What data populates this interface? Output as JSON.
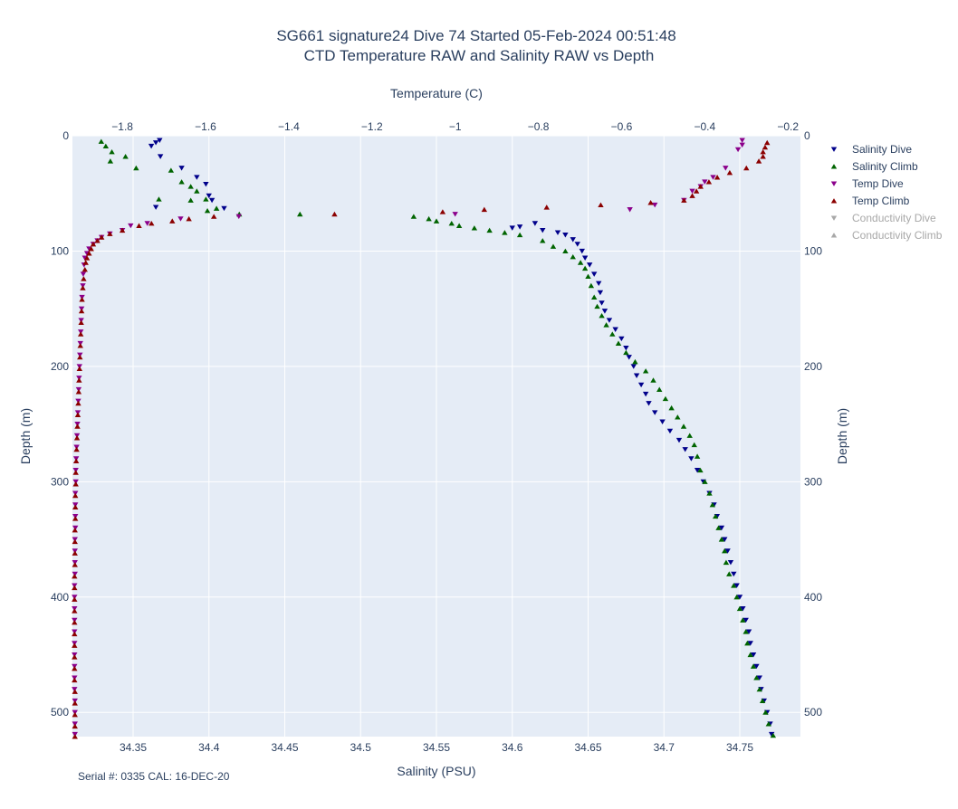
{
  "chart_data": {
    "type": "scatter",
    "title_line1": "SG661 signature24 Dive 74 Started 05-Feb-2024 00:51:48",
    "title_line2": "CTD Temperature RAW and Salinity RAW vs Depth",
    "xlabel_bottom": "Salinity (PSU)",
    "xlabel_top": "Temperature (C)",
    "ylabel_left": "Depth (m)",
    "ylabel_right": "Depth (m)",
    "footer": "Serial #: 0335  CAL: 16-DEC-20",
    "xlim_bottom": [
      34.31,
      34.79
    ],
    "xlim_top": [
      -1.92,
      -0.17
    ],
    "ylim": [
      0,
      521
    ],
    "y_reversed": true,
    "grid": true,
    "legend_placement": "top-right outside",
    "bottom_ticks": [
      "34.35",
      "34.4",
      "34.45",
      "34.5",
      "34.55",
      "34.6",
      "34.65",
      "34.7",
      "34.75"
    ],
    "bottom_tick_values": [
      34.35,
      34.4,
      34.45,
      34.5,
      34.55,
      34.6,
      34.65,
      34.7,
      34.75
    ],
    "top_ticks": [
      "−1.8",
      "−1.6",
      "−1.4",
      "−1.2",
      "−1",
      "−0.8",
      "−0.6",
      "−0.4",
      "−0.2"
    ],
    "top_tick_values": [
      -1.8,
      -1.6,
      -1.4,
      -1.2,
      -1.0,
      -0.8,
      -0.6,
      -0.4,
      -0.2
    ],
    "y_ticks": [
      "0",
      "100",
      "200",
      "300",
      "400",
      "500"
    ],
    "y_tick_values": [
      0,
      100,
      200,
      300,
      400,
      500
    ],
    "series": [
      {
        "name": "Salinity Dive",
        "color": "#00008b",
        "marker": "triangle-down",
        "axis": "salinity",
        "visible": true,
        "points": [
          [
            34.3675,
            4
          ],
          [
            34.365,
            6
          ],
          [
            34.362,
            9
          ],
          [
            34.368,
            18
          ],
          [
            34.382,
            28
          ],
          [
            34.392,
            36
          ],
          [
            34.398,
            42
          ],
          [
            34.4,
            52
          ],
          [
            34.402,
            56
          ],
          [
            34.365,
            62
          ],
          [
            34.41,
            63
          ],
          [
            34.6,
            80
          ],
          [
            34.605,
            79
          ],
          [
            34.615,
            76
          ],
          [
            34.62,
            82
          ],
          [
            34.63,
            84
          ],
          [
            34.635,
            86
          ],
          [
            34.64,
            90
          ],
          [
            34.643,
            94
          ],
          [
            34.646,
            100
          ],
          [
            34.648,
            106
          ],
          [
            34.651,
            112
          ],
          [
            34.654,
            120
          ],
          [
            34.657,
            128
          ],
          [
            34.658,
            136
          ],
          [
            34.659,
            145
          ],
          [
            34.661,
            152
          ],
          [
            34.664,
            160
          ],
          [
            34.668,
            168
          ],
          [
            34.672,
            176
          ],
          [
            34.675,
            184
          ],
          [
            34.677,
            192
          ],
          [
            34.68,
            200
          ],
          [
            34.682,
            208
          ],
          [
            34.685,
            216
          ],
          [
            34.688,
            224
          ],
          [
            34.69,
            232
          ],
          [
            34.694,
            240
          ],
          [
            34.699,
            248
          ],
          [
            34.704,
            256
          ],
          [
            34.71,
            264
          ],
          [
            34.714,
            272
          ],
          [
            34.718,
            280
          ],
          [
            34.722,
            290
          ],
          [
            34.726,
            300
          ],
          [
            34.73,
            310
          ],
          [
            34.733,
            320
          ],
          [
            34.735,
            330
          ],
          [
            34.738,
            340
          ],
          [
            34.74,
            350
          ],
          [
            34.742,
            360
          ],
          [
            34.744,
            370
          ],
          [
            34.746,
            380
          ],
          [
            34.748,
            390
          ],
          [
            34.75,
            400
          ],
          [
            34.752,
            410
          ],
          [
            34.754,
            420
          ],
          [
            34.756,
            430
          ],
          [
            34.757,
            440
          ],
          [
            34.759,
            450
          ],
          [
            34.761,
            460
          ],
          [
            34.763,
            470
          ],
          [
            34.764,
            480
          ],
          [
            34.766,
            490
          ],
          [
            34.768,
            500
          ],
          [
            34.77,
            510
          ],
          [
            34.771,
            519
          ]
        ]
      },
      {
        "name": "Salinity Climb",
        "color": "#006400",
        "marker": "triangle-up",
        "axis": "salinity",
        "visible": true,
        "points": [
          [
            34.329,
            5
          ],
          [
            34.332,
            9
          ],
          [
            34.336,
            14
          ],
          [
            34.335,
            22
          ],
          [
            34.345,
            18
          ],
          [
            34.352,
            28
          ],
          [
            34.375,
            30
          ],
          [
            34.382,
            40
          ],
          [
            34.388,
            44
          ],
          [
            34.392,
            48
          ],
          [
            34.398,
            55
          ],
          [
            34.388,
            56
          ],
          [
            34.367,
            55
          ],
          [
            34.405,
            63
          ],
          [
            34.399,
            65
          ],
          [
            34.42,
            68
          ],
          [
            34.46,
            68
          ],
          [
            34.535,
            70
          ],
          [
            34.545,
            72
          ],
          [
            34.55,
            74
          ],
          [
            34.56,
            76
          ],
          [
            34.565,
            78
          ],
          [
            34.575,
            80
          ],
          [
            34.585,
            82
          ],
          [
            34.595,
            84
          ],
          [
            34.605,
            86
          ],
          [
            34.62,
            91
          ],
          [
            34.627,
            96
          ],
          [
            34.635,
            100
          ],
          [
            34.64,
            105
          ],
          [
            34.645,
            110
          ],
          [
            34.648,
            115
          ],
          [
            34.65,
            122
          ],
          [
            34.652,
            130
          ],
          [
            34.654,
            140
          ],
          [
            34.656,
            148
          ],
          [
            34.659,
            156
          ],
          [
            34.662,
            164
          ],
          [
            34.666,
            172
          ],
          [
            34.67,
            180
          ],
          [
            34.675,
            188
          ],
          [
            34.681,
            196
          ],
          [
            34.688,
            204
          ],
          [
            34.693,
            212
          ],
          [
            34.697,
            220
          ],
          [
            34.701,
            228
          ],
          [
            34.705,
            236
          ],
          [
            34.709,
            244
          ],
          [
            34.713,
            252
          ],
          [
            34.717,
            260
          ],
          [
            34.72,
            268
          ],
          [
            34.722,
            278
          ],
          [
            34.724,
            290
          ],
          [
            34.727,
            300
          ],
          [
            34.73,
            310
          ],
          [
            34.732,
            320
          ],
          [
            34.734,
            330
          ],
          [
            34.736,
            340
          ],
          [
            34.738,
            350
          ],
          [
            34.74,
            360
          ],
          [
            34.741,
            370
          ],
          [
            34.743,
            380
          ],
          [
            34.746,
            390
          ],
          [
            34.748,
            400
          ],
          [
            34.75,
            410
          ],
          [
            34.752,
            420
          ],
          [
            34.754,
            430
          ],
          [
            34.755,
            440
          ],
          [
            34.757,
            450
          ],
          [
            34.759,
            460
          ],
          [
            34.761,
            470
          ],
          [
            34.763,
            480
          ],
          [
            34.765,
            490
          ],
          [
            34.767,
            500
          ],
          [
            34.769,
            510
          ],
          [
            34.772,
            520
          ]
        ]
      },
      {
        "name": "Temp Dive",
        "color": "#8b008b",
        "marker": "triangle-down",
        "axis": "temperature",
        "visible": true,
        "points": [
          [
            -0.31,
            4
          ],
          [
            -0.31,
            8
          ],
          [
            -0.32,
            12
          ],
          [
            -0.35,
            28
          ],
          [
            -0.38,
            36
          ],
          [
            -0.4,
            40
          ],
          [
            -0.41,
            44
          ],
          [
            -0.43,
            48
          ],
          [
            -0.45,
            56
          ],
          [
            -0.52,
            60
          ],
          [
            -0.58,
            64
          ],
          [
            -1.0,
            68
          ],
          [
            -1.52,
            70
          ],
          [
            -1.66,
            72
          ],
          [
            -1.74,
            76
          ],
          [
            -1.78,
            78
          ],
          [
            -1.8,
            82
          ],
          [
            -1.83,
            85
          ],
          [
            -1.85,
            88
          ],
          [
            -1.86,
            91
          ],
          [
            -1.87,
            94
          ],
          [
            -1.88,
            98
          ],
          [
            -1.885,
            102
          ],
          [
            -1.89,
            106
          ],
          [
            -1.892,
            112
          ],
          [
            -1.894,
            120
          ],
          [
            -1.895,
            130
          ],
          [
            -1.897,
            140
          ],
          [
            -1.898,
            150
          ],
          [
            -1.899,
            160
          ],
          [
            -1.9,
            170
          ],
          [
            -1.901,
            180
          ],
          [
            -1.902,
            190
          ],
          [
            -1.903,
            200
          ],
          [
            -1.904,
            210
          ],
          [
            -1.905,
            220
          ],
          [
            -1.906,
            230
          ],
          [
            -1.907,
            240
          ],
          [
            -1.908,
            250
          ],
          [
            -1.909,
            260
          ],
          [
            -1.91,
            270
          ],
          [
            -1.911,
            280
          ],
          [
            -1.912,
            290
          ],
          [
            -1.912,
            300
          ],
          [
            -1.913,
            310
          ],
          [
            -1.913,
            320
          ],
          [
            -1.913,
            330
          ],
          [
            -1.913,
            340
          ],
          [
            -1.914,
            350
          ],
          [
            -1.914,
            360
          ],
          [
            -1.914,
            370
          ],
          [
            -1.914,
            380
          ],
          [
            -1.915,
            390
          ],
          [
            -1.915,
            400
          ],
          [
            -1.915,
            410
          ],
          [
            -1.915,
            420
          ],
          [
            -1.915,
            430
          ],
          [
            -1.915,
            440
          ],
          [
            -1.915,
            450
          ],
          [
            -1.915,
            460
          ],
          [
            -1.915,
            470
          ],
          [
            -1.915,
            480
          ],
          [
            -1.914,
            490
          ],
          [
            -1.914,
            500
          ],
          [
            -1.914,
            510
          ],
          [
            -1.914,
            519
          ]
        ]
      },
      {
        "name": "Temp Climb",
        "color": "#8b0000",
        "marker": "triangle-up",
        "axis": "temperature",
        "visible": true,
        "points": [
          [
            -0.25,
            6
          ],
          [
            -0.255,
            10
          ],
          [
            -0.26,
            14
          ],
          [
            -0.26,
            18
          ],
          [
            -0.27,
            22
          ],
          [
            -0.3,
            28
          ],
          [
            -0.34,
            32
          ],
          [
            -0.37,
            36
          ],
          [
            -0.39,
            40
          ],
          [
            -0.41,
            44
          ],
          [
            -0.42,
            48
          ],
          [
            -0.43,
            52
          ],
          [
            -0.45,
            56
          ],
          [
            -0.53,
            58
          ],
          [
            -0.65,
            60
          ],
          [
            -0.78,
            62
          ],
          [
            -0.93,
            64
          ],
          [
            -1.03,
            66
          ],
          [
            -1.29,
            68
          ],
          [
            -1.58,
            70
          ],
          [
            -1.64,
            72
          ],
          [
            -1.68,
            74
          ],
          [
            -1.73,
            76
          ],
          [
            -1.76,
            78
          ],
          [
            -1.8,
            82
          ],
          [
            -1.83,
            85
          ],
          [
            -1.85,
            88
          ],
          [
            -1.86,
            91
          ],
          [
            -1.87,
            94
          ],
          [
            -1.875,
            98
          ],
          [
            -1.88,
            102
          ],
          [
            -1.885,
            106
          ],
          [
            -1.888,
            110
          ],
          [
            -1.89,
            116
          ],
          [
            -1.893,
            124
          ],
          [
            -1.895,
            132
          ],
          [
            -1.897,
            142
          ],
          [
            -1.898,
            152
          ],
          [
            -1.899,
            162
          ],
          [
            -1.9,
            172
          ],
          [
            -1.901,
            182
          ],
          [
            -1.902,
            192
          ],
          [
            -1.903,
            202
          ],
          [
            -1.904,
            212
          ],
          [
            -1.905,
            222
          ],
          [
            -1.906,
            232
          ],
          [
            -1.907,
            242
          ],
          [
            -1.908,
            252
          ],
          [
            -1.909,
            262
          ],
          [
            -1.91,
            272
          ],
          [
            -1.911,
            282
          ],
          [
            -1.912,
            292
          ],
          [
            -1.912,
            302
          ],
          [
            -1.913,
            312
          ],
          [
            -1.913,
            322
          ],
          [
            -1.913,
            332
          ],
          [
            -1.914,
            342
          ],
          [
            -1.914,
            352
          ],
          [
            -1.914,
            362
          ],
          [
            -1.914,
            372
          ],
          [
            -1.915,
            382
          ],
          [
            -1.915,
            392
          ],
          [
            -1.915,
            402
          ],
          [
            -1.915,
            412
          ],
          [
            -1.915,
            422
          ],
          [
            -1.915,
            432
          ],
          [
            -1.915,
            442
          ],
          [
            -1.915,
            452
          ],
          [
            -1.915,
            462
          ],
          [
            -1.915,
            472
          ],
          [
            -1.914,
            482
          ],
          [
            -1.914,
            492
          ],
          [
            -1.914,
            502
          ],
          [
            -1.914,
            512
          ],
          [
            -1.914,
            521
          ]
        ]
      },
      {
        "name": "Conductivity Dive",
        "color": "#a8a8a8",
        "marker": "triangle-down",
        "axis": "none",
        "visible": false,
        "points": []
      },
      {
        "name": "Conductivity Climb",
        "color": "#a8a8a8",
        "marker": "triangle-up",
        "axis": "none",
        "visible": false,
        "points": []
      }
    ]
  },
  "colors": {
    "plot_bg": "#e5ecf6",
    "grid": "#ffffff",
    "text": "#2a3f5f"
  }
}
